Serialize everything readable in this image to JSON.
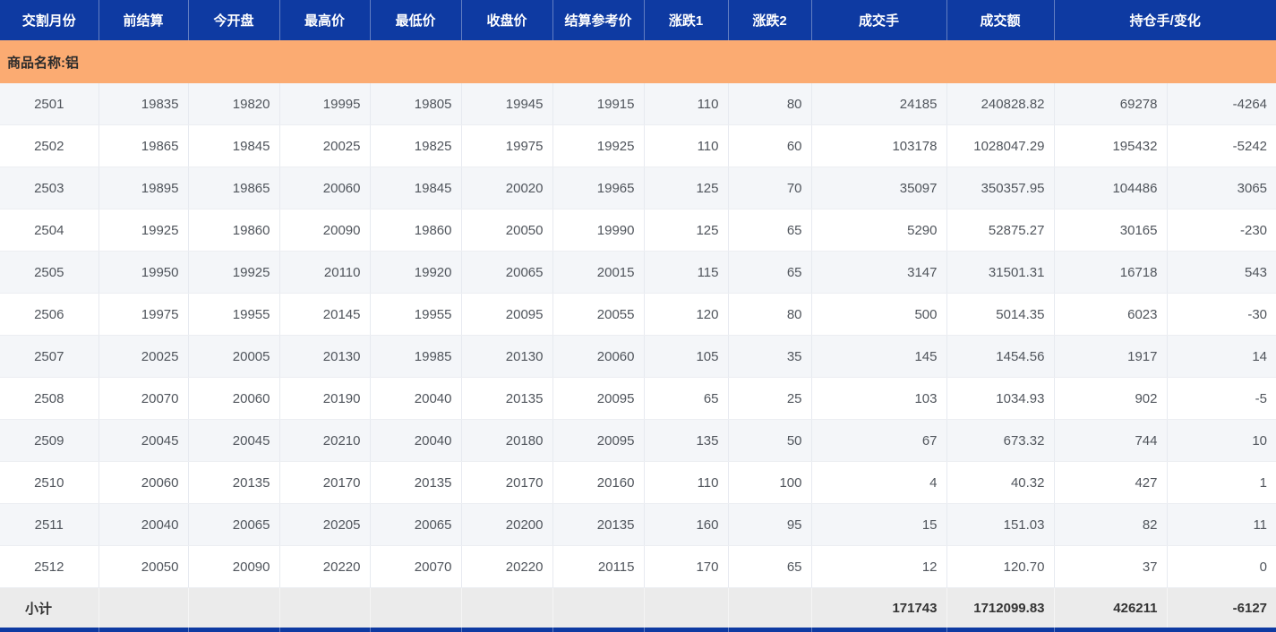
{
  "table": {
    "headers": [
      "交割月份",
      "前结算",
      "今开盘",
      "最高价",
      "最低价",
      "收盘价",
      "结算参考价",
      "涨跌1",
      "涨跌2",
      "成交手",
      "成交额",
      "持仓手/变化"
    ],
    "group_label": "商品名称:铝",
    "rows": [
      [
        "2501",
        "19835",
        "19820",
        "19995",
        "19805",
        "19945",
        "19915",
        "110",
        "80",
        "24185",
        "240828.82",
        "69278",
        "-4264"
      ],
      [
        "2502",
        "19865",
        "19845",
        "20025",
        "19825",
        "19975",
        "19925",
        "110",
        "60",
        "103178",
        "1028047.29",
        "195432",
        "-5242"
      ],
      [
        "2503",
        "19895",
        "19865",
        "20060",
        "19845",
        "20020",
        "19965",
        "125",
        "70",
        "35097",
        "350357.95",
        "104486",
        "3065"
      ],
      [
        "2504",
        "19925",
        "19860",
        "20090",
        "19860",
        "20050",
        "19990",
        "125",
        "65",
        "5290",
        "52875.27",
        "30165",
        "-230"
      ],
      [
        "2505",
        "19950",
        "19925",
        "20110",
        "19920",
        "20065",
        "20015",
        "115",
        "65",
        "3147",
        "31501.31",
        "16718",
        "543"
      ],
      [
        "2506",
        "19975",
        "19955",
        "20145",
        "19955",
        "20095",
        "20055",
        "120",
        "80",
        "500",
        "5014.35",
        "6023",
        "-30"
      ],
      [
        "2507",
        "20025",
        "20005",
        "20130",
        "19985",
        "20130",
        "20060",
        "105",
        "35",
        "145",
        "1454.56",
        "1917",
        "14"
      ],
      [
        "2508",
        "20070",
        "20060",
        "20190",
        "20040",
        "20135",
        "20095",
        "65",
        "25",
        "103",
        "1034.93",
        "902",
        "-5"
      ],
      [
        "2509",
        "20045",
        "20045",
        "20210",
        "20040",
        "20180",
        "20095",
        "135",
        "50",
        "67",
        "673.32",
        "744",
        "10"
      ],
      [
        "2510",
        "20060",
        "20135",
        "20170",
        "20135",
        "20170",
        "20160",
        "110",
        "100",
        "4",
        "40.32",
        "427",
        "1"
      ],
      [
        "2511",
        "20040",
        "20065",
        "20205",
        "20065",
        "20200",
        "20135",
        "160",
        "95",
        "15",
        "151.03",
        "82",
        "11"
      ],
      [
        "2512",
        "20050",
        "20090",
        "20220",
        "20070",
        "20220",
        "20115",
        "170",
        "65",
        "12",
        "120.70",
        "37",
        "0"
      ]
    ],
    "subtotal": {
      "label": "小计",
      "volume": "171743",
      "turnover": "1712099.83",
      "open_interest": "426211",
      "change": "-6127"
    }
  },
  "colors": {
    "header_blue": "#0e3aa2",
    "group_orange": "#fbab72",
    "stripe_row": "#f4f6f9",
    "subtotal_gray": "#ebebeb"
  }
}
